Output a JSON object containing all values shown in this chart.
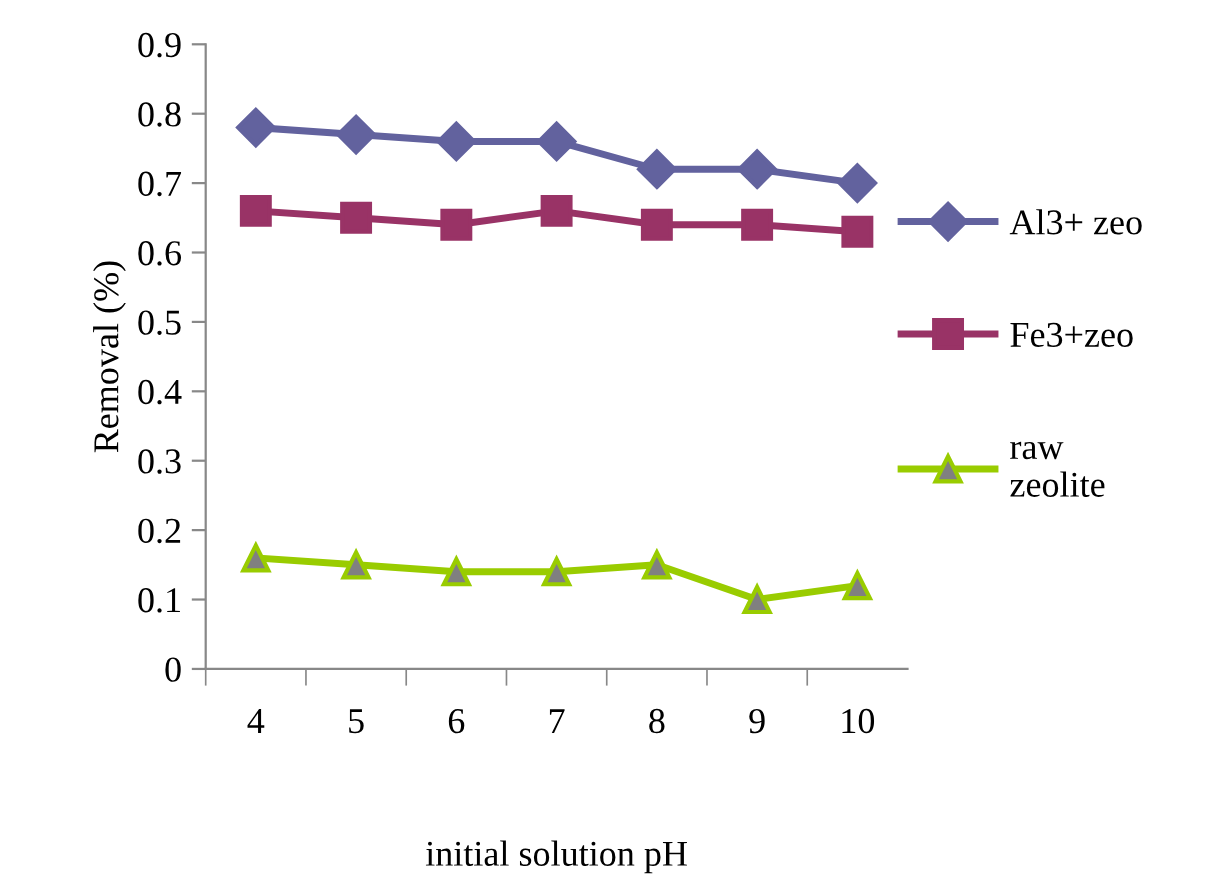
{
  "chart_data": {
    "type": "line",
    "xlabel": "initial solution pH",
    "ylabel": "Removal (%)",
    "categories": [
      "4",
      "5",
      "6",
      "7",
      "8",
      "9",
      "10"
    ],
    "series": [
      {
        "name": "Al3+ zeo",
        "color": "#62629e",
        "marker": "diamond",
        "values": [
          0.78,
          0.77,
          0.76,
          0.76,
          0.72,
          0.72,
          0.7
        ]
      },
      {
        "name": "Fe3+zeo",
        "color": "#993366",
        "marker": "square",
        "values": [
          0.66,
          0.65,
          0.64,
          0.66,
          0.64,
          0.64,
          0.63
        ]
      },
      {
        "name": "raw\nzeolite",
        "color": "#99cc00",
        "marker": "triangle",
        "values": [
          0.16,
          0.15,
          0.14,
          0.14,
          0.15,
          0.1,
          0.12
        ]
      }
    ],
    "ylim": [
      0,
      0.9
    ],
    "yticks": [
      0,
      {
        "value": 0.1,
        "label": "0.1"
      },
      {
        "value": 0.2,
        "label": "0.2"
      },
      {
        "value": 0.3,
        "label": "0.3"
      },
      {
        "value": 0.4,
        "label": "0.4"
      },
      {
        "value": 0.5,
        "label": "0.5"
      },
      {
        "value": 0.6,
        "label": "0.6"
      },
      {
        "value": 0.7,
        "label": "0.7"
      },
      {
        "value": 0.8,
        "label": "0.8"
      },
      {
        "value": 0.9,
        "label": "0.9"
      }
    ],
    "grid": false,
    "legend": "right"
  }
}
